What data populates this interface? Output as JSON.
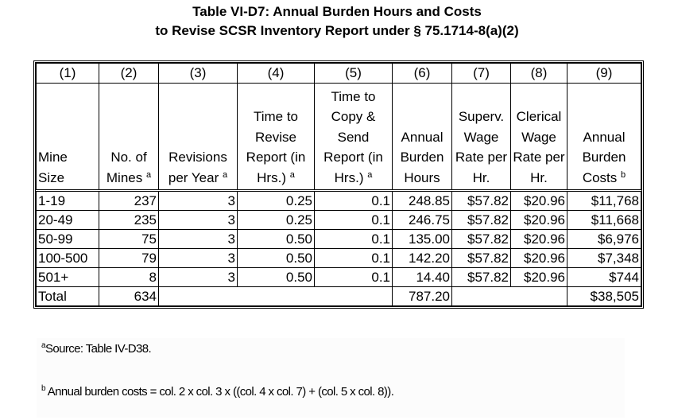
{
  "title": {
    "line1": "Table VI-D7:  Annual Burden Hours and Costs",
    "line2": "to Revise SCSR Inventory Report under § 75.1714-8(a)(2)"
  },
  "columns": [
    {
      "num": "(1)",
      "label": "Mine Size",
      "sup": ""
    },
    {
      "num": "(2)",
      "label": "No. of Mines",
      "sup": "a"
    },
    {
      "num": "(3)",
      "label": "Revisions per Year",
      "sup": "a"
    },
    {
      "num": "(4)",
      "label": "Time to Revise Report (in Hrs.)",
      "sup": "a"
    },
    {
      "num": "(5)",
      "label": "Time to Copy & Send Report (in Hrs.)",
      "sup": "a"
    },
    {
      "num": "(6)",
      "label": "Annual Burden Hours",
      "sup": ""
    },
    {
      "num": "(7)",
      "label": "Superv. Wage Rate per Hr.",
      "sup": ""
    },
    {
      "num": "(8)",
      "label": "Clerical Wage Rate per Hr.",
      "sup": ""
    },
    {
      "num": "(9)",
      "label": "Annual Burden Costs",
      "sup": "b"
    }
  ],
  "rows": [
    [
      "1-19",
      "237",
      "3",
      "0.25",
      "0.1",
      "248.85",
      "$57.82",
      "$20.96",
      "$11,768"
    ],
    [
      "20-49",
      "235",
      "3",
      "0.25",
      "0.1",
      "246.75",
      "$57.82",
      "$20.96",
      "$11,668"
    ],
    [
      "50-99",
      "75",
      "3",
      "0.50",
      "0.1",
      "135.00",
      "$57.82",
      "$20.96",
      "$6,976"
    ],
    [
      "100-500",
      "79",
      "3",
      "0.50",
      "0.1",
      "142.20",
      "$57.82",
      "$20.96",
      "$7,348"
    ],
    [
      "501+",
      "8",
      "3",
      "0.50",
      "0.1",
      "14.40",
      "$57.82",
      "$20.96",
      "$744"
    ]
  ],
  "total": {
    "label": "Total",
    "mines": "634",
    "hours": "787.20",
    "costs": "$38,505"
  },
  "footnotes": [
    {
      "mark": "a",
      "text": "Source:  Table IV-D38."
    },
    {
      "mark": "b",
      "text": "Annual burden costs = col. 2 x col. 3 x ((col. 4 x col. 7) + (col. 5 x col. 8))."
    }
  ]
}
